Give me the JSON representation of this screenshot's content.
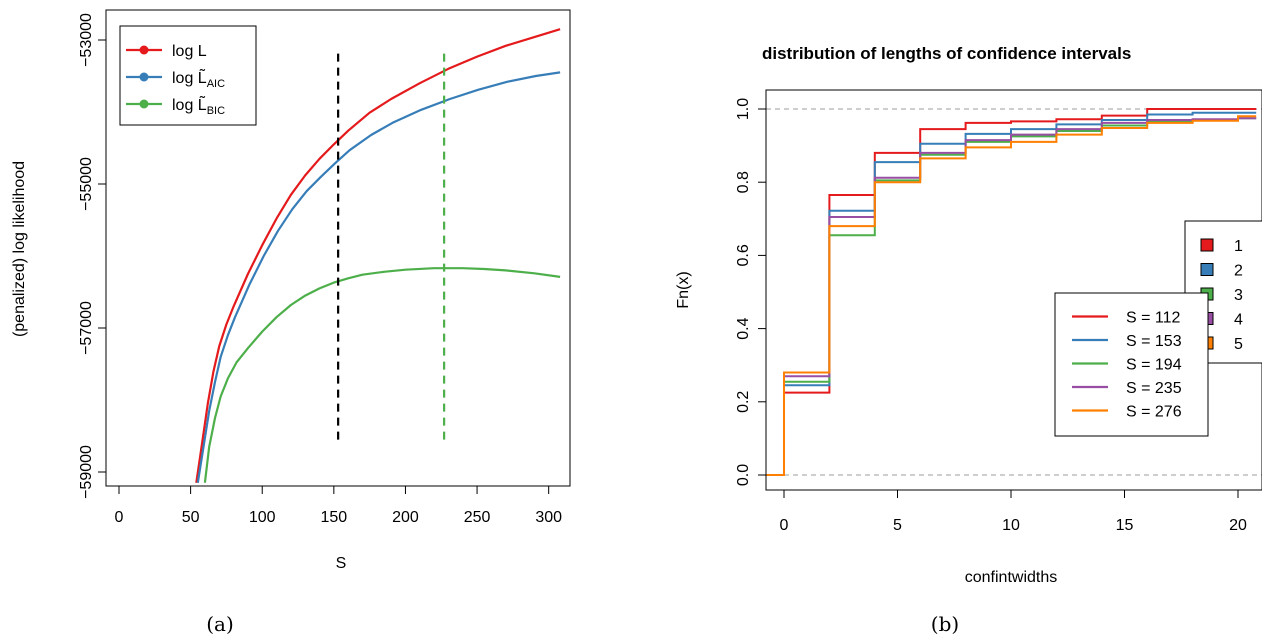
{
  "panel_a_caption": "(a)",
  "panel_b_caption": "(b)",
  "chart_data": [
    {
      "type": "line",
      "title": "",
      "xlabel": "S",
      "ylabel": "(penalized) log likelihood",
      "xlim": [
        0,
        310
      ],
      "ylim": [
        -59000,
        -53000
      ],
      "xticks": [
        0,
        50,
        100,
        150,
        200,
        250,
        300
      ],
      "xtick_labels": [
        "0",
        "50",
        "100",
        "150",
        "200",
        "250",
        "300"
      ],
      "yticks": [
        -59000,
        -57000,
        -55000,
        -53000
      ],
      "ytick_labels": [
        "−59000",
        "−57000",
        "−55000",
        "−53000"
      ],
      "grid": false,
      "legend_position": "top-left",
      "legend": [
        {
          "base": "log L",
          "sub": ""
        },
        {
          "base": "log L̃",
          "sub": "AIC"
        },
        {
          "base": "log L̃",
          "sub": "BIC"
        }
      ],
      "series": [
        {
          "color": "#e41a1c",
          "x": [
            54,
            58,
            62,
            66,
            70,
            75,
            80,
            90,
            100,
            110,
            120,
            130,
            140,
            150,
            160,
            175,
            190,
            210,
            230,
            250,
            270,
            290,
            308
          ],
          "y": [
            -59150,
            -58600,
            -58050,
            -57600,
            -57250,
            -56950,
            -56700,
            -56250,
            -55850,
            -55480,
            -55150,
            -54880,
            -54650,
            -54450,
            -54260,
            -54010,
            -53820,
            -53600,
            -53400,
            -53230,
            -53080,
            -52960,
            -52850
          ]
        },
        {
          "color": "#377eb8",
          "x": [
            55,
            59,
            63,
            67,
            71,
            76,
            81,
            91,
            101,
            111,
            121,
            131,
            141,
            151,
            161,
            176,
            191,
            211,
            231,
            251,
            271,
            291,
            308
          ],
          "y": [
            -59150,
            -58650,
            -58150,
            -57750,
            -57400,
            -57100,
            -56850,
            -56400,
            -56000,
            -55650,
            -55350,
            -55100,
            -54900,
            -54710,
            -54530,
            -54320,
            -54150,
            -53970,
            -53820,
            -53690,
            -53580,
            -53500,
            -53450
          ]
        },
        {
          "color": "#4daf4a",
          "x": [
            60,
            63,
            67,
            71,
            76,
            82,
            90,
            100,
            110,
            120,
            130,
            140,
            150,
            160,
            170,
            185,
            200,
            220,
            240,
            255,
            270,
            290,
            308
          ],
          "y": [
            -59150,
            -58650,
            -58250,
            -57950,
            -57700,
            -57480,
            -57280,
            -57050,
            -56850,
            -56680,
            -56550,
            -56450,
            -56370,
            -56310,
            -56260,
            -56220,
            -56190,
            -56170,
            -56170,
            -56180,
            -56200,
            -56240,
            -56290
          ]
        }
      ],
      "vlines": [
        {
          "x": 153,
          "y_from": -58550,
          "y_to": -53180,
          "color": "#000000"
        },
        {
          "x": 227,
          "y_from": -58550,
          "y_to": -53180,
          "color": "#4daf4a"
        }
      ]
    },
    {
      "type": "line",
      "title": "distribution of lengths of confidence intervals",
      "xlabel": "confintwidths",
      "ylabel": "Fn(x)",
      "xlim": [
        -1.5,
        20.8
      ],
      "ylim": [
        -0.04,
        1.04
      ],
      "xticks": [
        0,
        5,
        10,
        15,
        20
      ],
      "xtick_labels": [
        "0",
        "5",
        "10",
        "15",
        "20"
      ],
      "yticks": [
        0.0,
        0.2,
        0.4,
        0.6,
        0.8,
        1.0
      ],
      "ytick_labels": [
        "0.0",
        "0.2",
        "0.4",
        "0.6",
        "0.8",
        "1.0"
      ],
      "grid": false,
      "hlines_dashed": [
        0,
        1
      ],
      "legend_inner_position": "center-right",
      "legend_inner": [
        "S = 112",
        "S = 153",
        "S = 194",
        "S = 235",
        "S = 276"
      ],
      "legend_outer_position": "right",
      "legend_outer": [
        "1",
        "2",
        "3",
        "4",
        "5"
      ],
      "series": [
        {
          "name": "S = 112",
          "color": "#e41a1c",
          "x": [
            -1.5,
            0,
            2,
            4,
            6,
            8,
            10,
            12,
            14,
            16,
            18,
            20,
            20.8
          ],
          "y": [
            0,
            0.225,
            0.765,
            0.88,
            0.945,
            0.962,
            0.966,
            0.972,
            0.982,
            1.0,
            1.0,
            1.0,
            1.0
          ]
        },
        {
          "name": "S = 153",
          "color": "#377eb8",
          "x": [
            -1.5,
            0,
            2,
            4,
            6,
            8,
            10,
            12,
            14,
            16,
            18,
            20,
            20.8
          ],
          "y": [
            0,
            0.245,
            0.722,
            0.855,
            0.905,
            0.932,
            0.945,
            0.958,
            0.97,
            0.985,
            0.99,
            0.99,
            0.99
          ]
        },
        {
          "name": "S = 194",
          "color": "#4daf4a",
          "x": [
            -1.5,
            0,
            2,
            4,
            6,
            8,
            10,
            12,
            14,
            16,
            18,
            20,
            20.8
          ],
          "y": [
            0,
            0.255,
            0.655,
            0.805,
            0.875,
            0.91,
            0.925,
            0.94,
            0.955,
            0.965,
            0.97,
            0.975,
            0.975
          ]
        },
        {
          "name": "S = 235",
          "color": "#984ea3",
          "x": [
            -1.5,
            0,
            2,
            4,
            6,
            8,
            10,
            12,
            14,
            16,
            18,
            20,
            20.8
          ],
          "y": [
            0,
            0.27,
            0.705,
            0.812,
            0.88,
            0.915,
            0.93,
            0.945,
            0.962,
            0.97,
            0.972,
            0.975,
            0.975
          ]
        },
        {
          "name": "S = 276",
          "color": "#ff7f00",
          "x": [
            -1.5,
            0,
            2,
            4,
            6,
            8,
            10,
            12,
            14,
            16,
            18,
            20,
            20.8
          ],
          "y": [
            0,
            0.28,
            0.68,
            0.8,
            0.865,
            0.895,
            0.91,
            0.93,
            0.948,
            0.962,
            0.968,
            0.98,
            0.98
          ]
        }
      ]
    }
  ]
}
